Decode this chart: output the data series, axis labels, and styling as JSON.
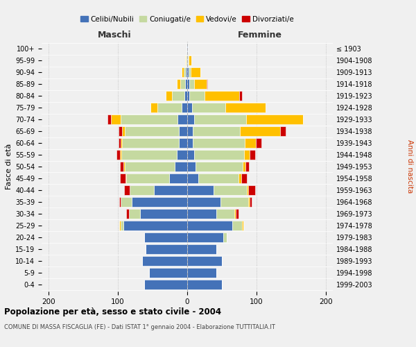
{
  "age_groups": [
    "0-4",
    "5-9",
    "10-14",
    "15-19",
    "20-24",
    "25-29",
    "30-34",
    "35-39",
    "40-44",
    "45-49",
    "50-54",
    "55-59",
    "60-64",
    "65-69",
    "70-74",
    "75-79",
    "80-84",
    "85-89",
    "90-94",
    "95-99",
    "100+"
  ],
  "birth_years": [
    "1999-2003",
    "1994-1998",
    "1989-1993",
    "1984-1988",
    "1979-1983",
    "1974-1978",
    "1969-1973",
    "1964-1968",
    "1959-1963",
    "1954-1958",
    "1949-1953",
    "1944-1948",
    "1939-1943",
    "1934-1938",
    "1929-1933",
    "1924-1928",
    "1919-1923",
    "1914-1918",
    "1909-1913",
    "1904-1908",
    "≤ 1903"
  ],
  "colors": {
    "celibi": "#4472b8",
    "coniugati": "#c5d9a0",
    "vedovi": "#ffc000",
    "divorziati": "#cc0000"
  },
  "maschi": {
    "celibi": [
      62,
      55,
      65,
      60,
      62,
      92,
      68,
      80,
      48,
      26,
      18,
      15,
      12,
      12,
      14,
      8,
      4,
      3,
      2,
      1,
      1
    ],
    "coniugati": [
      0,
      0,
      0,
      0,
      0,
      4,
      16,
      16,
      35,
      62,
      72,
      80,
      82,
      78,
      82,
      35,
      18,
      7,
      3,
      1,
      0
    ],
    "vedovi": [
      0,
      0,
      0,
      0,
      0,
      2,
      0,
      0,
      0,
      1,
      2,
      2,
      2,
      4,
      14,
      10,
      9,
      5,
      3,
      1,
      0
    ],
    "divorziati": [
      0,
      0,
      0,
      0,
      0,
      0,
      4,
      2,
      8,
      8,
      5,
      5,
      3,
      5,
      5,
      0,
      0,
      0,
      0,
      0,
      0
    ]
  },
  "femmine": {
    "celibi": [
      50,
      42,
      50,
      42,
      52,
      65,
      42,
      48,
      38,
      16,
      12,
      10,
      8,
      8,
      10,
      7,
      3,
      3,
      2,
      1,
      1
    ],
    "coniugati": [
      0,
      0,
      0,
      0,
      5,
      14,
      26,
      40,
      48,
      58,
      68,
      72,
      75,
      68,
      75,
      48,
      22,
      7,
      3,
      1,
      0
    ],
    "vedovi": [
      0,
      0,
      0,
      0,
      0,
      2,
      2,
      2,
      2,
      4,
      4,
      8,
      16,
      58,
      82,
      58,
      50,
      18,
      14,
      4,
      0
    ],
    "divorziati": [
      0,
      0,
      0,
      0,
      0,
      0,
      4,
      3,
      10,
      8,
      5,
      8,
      8,
      8,
      0,
      0,
      4,
      1,
      0,
      0,
      0
    ]
  },
  "title": "Popolazione per età, sesso e stato civile - 2004",
  "subtitle": "COMUNE DI MASSA FISCAGLIA (FE) - Dati ISTAT 1° gennaio 2004 - Elaborazione TUTTITALIA.IT",
  "xlabel_left": "Maschi",
  "xlabel_right": "Femmine",
  "ylabel_left": "Fasce di età",
  "ylabel_right": "Anni di nascita",
  "xlim": 210,
  "xticks": [
    -200,
    -100,
    0,
    100,
    200
  ],
  "legend_labels": [
    "Celibi/Nubili",
    "Coniugati/e",
    "Vedovi/e",
    "Divorziati/e"
  ],
  "background_color": "#f0f0f0",
  "bar_facecolor": "#e8e8e8"
}
